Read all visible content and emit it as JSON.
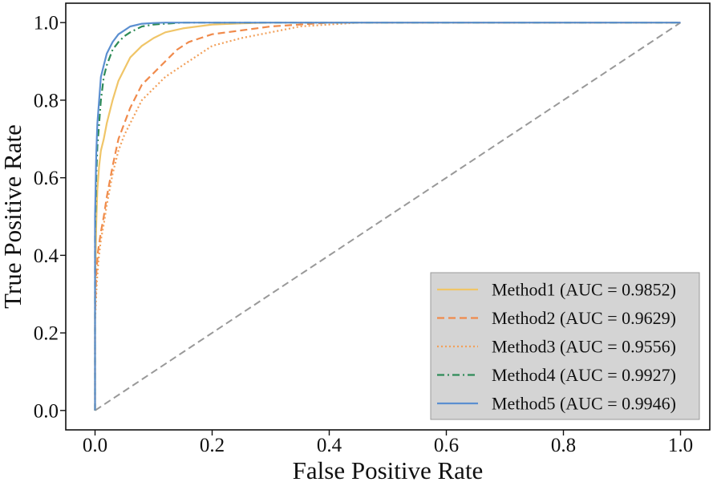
{
  "chart_data": {
    "type": "line",
    "title": "",
    "xlabel": "False Positive Rate",
    "ylabel": "True Positive Rate",
    "xlim": [
      -0.05,
      1.05
    ],
    "ylim": [
      -0.05,
      1.05
    ],
    "xticks": [
      0.0,
      0.2,
      0.4,
      0.6,
      0.8,
      1.0
    ],
    "yticks": [
      0.0,
      0.2,
      0.4,
      0.6,
      0.8,
      1.0
    ],
    "xtick_labels": [
      "0.0",
      "0.2",
      "0.4",
      "0.6",
      "0.8",
      "1.0"
    ],
    "ytick_labels": [
      "0.0",
      "0.2",
      "0.4",
      "0.6",
      "0.8",
      "1.0"
    ],
    "grid": false,
    "legend_position": "lower-right",
    "series": [
      {
        "name": "Method1",
        "label": "Method1 (AUC = 0.9852)",
        "color": "#f0c568",
        "dash": "solid",
        "x": [
          0.0,
          0.0,
          0.002,
          0.004,
          0.007,
          0.01,
          0.015,
          0.02,
          0.03,
          0.04,
          0.05,
          0.06,
          0.08,
          0.1,
          0.12,
          0.15,
          0.2,
          0.25,
          0.3,
          1.0
        ],
        "y": [
          0.0,
          0.3,
          0.48,
          0.57,
          0.63,
          0.67,
          0.7,
          0.74,
          0.8,
          0.85,
          0.88,
          0.91,
          0.94,
          0.96,
          0.975,
          0.985,
          0.995,
          0.998,
          1.0,
          1.0
        ]
      },
      {
        "name": "Method2",
        "label": "Method2 (AUC = 0.9629)",
        "color": "#f08a4b",
        "dash": "dashed",
        "x": [
          0.0,
          0.0,
          0.002,
          0.005,
          0.01,
          0.015,
          0.02,
          0.03,
          0.04,
          0.05,
          0.06,
          0.07,
          0.08,
          0.1,
          0.12,
          0.14,
          0.16,
          0.18,
          0.2,
          0.25,
          0.3,
          0.35,
          0.4,
          1.0
        ],
        "y": [
          0.0,
          0.25,
          0.35,
          0.41,
          0.46,
          0.5,
          0.55,
          0.63,
          0.7,
          0.74,
          0.78,
          0.81,
          0.84,
          0.87,
          0.9,
          0.93,
          0.95,
          0.96,
          0.97,
          0.98,
          0.99,
          0.995,
          1.0,
          1.0
        ]
      },
      {
        "name": "Method3",
        "label": "Method3 (AUC = 0.9556)",
        "color": "#f2a05a",
        "dash": "dotted",
        "x": [
          0.0,
          0.0,
          0.003,
          0.006,
          0.01,
          0.015,
          0.02,
          0.03,
          0.04,
          0.05,
          0.06,
          0.07,
          0.08,
          0.1,
          0.12,
          0.14,
          0.16,
          0.18,
          0.2,
          0.25,
          0.3,
          0.35,
          0.4,
          0.45,
          1.0
        ],
        "y": [
          0.0,
          0.23,
          0.33,
          0.39,
          0.44,
          0.48,
          0.53,
          0.61,
          0.67,
          0.71,
          0.74,
          0.77,
          0.8,
          0.83,
          0.86,
          0.88,
          0.9,
          0.92,
          0.94,
          0.96,
          0.975,
          0.99,
          0.995,
          1.0,
          1.0
        ]
      },
      {
        "name": "Method4",
        "label": "Method4 (AUC = 0.9927)",
        "color": "#2e8b57",
        "dash": "dashdot",
        "x": [
          0.0,
          0.0,
          0.002,
          0.004,
          0.007,
          0.01,
          0.015,
          0.02,
          0.03,
          0.04,
          0.05,
          0.06,
          0.08,
          0.1,
          0.13,
          0.15,
          1.0
        ],
        "y": [
          0.0,
          0.45,
          0.6,
          0.68,
          0.74,
          0.8,
          0.86,
          0.89,
          0.93,
          0.95,
          0.965,
          0.975,
          0.99,
          0.995,
          0.998,
          1.0,
          1.0
        ]
      },
      {
        "name": "Method5",
        "label": "Method5 (AUC = 0.9946)",
        "color": "#5b8fd0",
        "dash": "solid",
        "x": [
          0.0,
          0.0,
          0.002,
          0.004,
          0.007,
          0.01,
          0.015,
          0.02,
          0.03,
          0.04,
          0.05,
          0.06,
          0.08,
          0.1,
          0.12,
          1.0
        ],
        "y": [
          0.0,
          0.5,
          0.66,
          0.74,
          0.8,
          0.86,
          0.89,
          0.92,
          0.95,
          0.97,
          0.98,
          0.99,
          0.997,
          0.999,
          1.0,
          1.0
        ]
      }
    ],
    "reference_line": {
      "name": "chance",
      "x": [
        0.0,
        1.0
      ],
      "y": [
        0.0,
        1.0
      ],
      "color": "#999999",
      "dash": "dashed"
    }
  }
}
